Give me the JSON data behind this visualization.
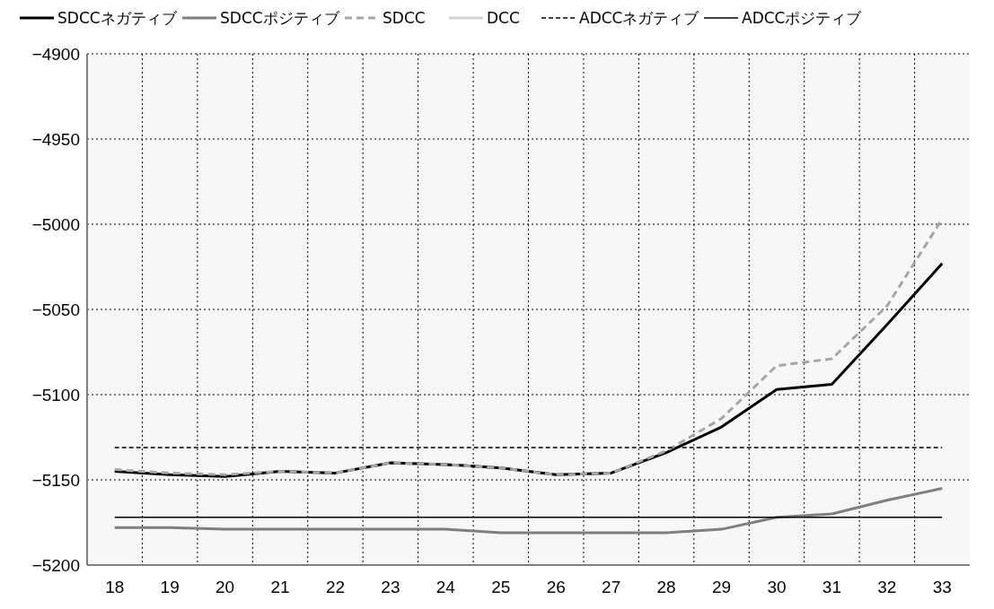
{
  "chart_data": {
    "type": "line",
    "categories": [
      "18",
      "19",
      "20",
      "21",
      "22",
      "23",
      "24",
      "25",
      "26",
      "27",
      "28",
      "29",
      "30",
      "31",
      "32",
      "33"
    ],
    "series": [
      {
        "name": "SDCCネガティブ",
        "color": "#000000",
        "line_style": "solid",
        "values": [
          -5145,
          -5147,
          -5148,
          -5145,
          -5146,
          -5140,
          -5141,
          -5143,
          -5147,
          -5146,
          -5134,
          -5119,
          -5097,
          -5094,
          -5059,
          -5023
        ]
      },
      {
        "name": "SDCCポジティブ",
        "color": "#7f7f7f",
        "line_style": "solid",
        "values": [
          -5178,
          -5178,
          -5179,
          -5179,
          -5179,
          -5179,
          -5179,
          -5181,
          -5181,
          -5181,
          -5181,
          -5179,
          -5172,
          -5170,
          -5162,
          -5155
        ]
      },
      {
        "name": "SDCC",
        "color": "#a6a6a6",
        "line_style": "dashed",
        "values": [
          -5144,
          -5146,
          -5147,
          -5145,
          -5146,
          -5140,
          -5141,
          -5143,
          -5147,
          -5146,
          -5133,
          -5114,
          -5083,
          -5079,
          -5048,
          -4997
        ]
      },
      {
        "name": "DCC",
        "color": "#d0d0d0",
        "line_style": "solid",
        "values": [
          null,
          null,
          null,
          null,
          null,
          null,
          null,
          null,
          null,
          null,
          null,
          null,
          null,
          null,
          null,
          null
        ]
      },
      {
        "name": "ADCCネガティブ",
        "color": "#000000",
        "line_style": "dashed",
        "values": [
          -5131,
          -5131,
          -5131,
          -5131,
          -5131,
          -5131,
          -5131,
          -5131,
          -5131,
          -5131,
          -5131,
          -5131,
          -5131,
          -5131,
          -5131,
          -5131
        ]
      },
      {
        "name": "ADCCポジティブ",
        "color": "#000000",
        "line_style": "solid",
        "values": [
          -5172,
          -5172,
          -5172,
          -5172,
          -5172,
          -5172,
          -5172,
          -5172,
          -5172,
          -5172,
          -5172,
          -5172,
          -5172,
          -5172,
          -5172,
          -5172
        ]
      }
    ],
    "ylim": [
      -5200,
      -4900
    ],
    "yticks": [
      -5200,
      -5150,
      -5100,
      -5050,
      -5000,
      -4950,
      -4900
    ],
    "grid": true,
    "legend": "top",
    "marker": "none"
  }
}
